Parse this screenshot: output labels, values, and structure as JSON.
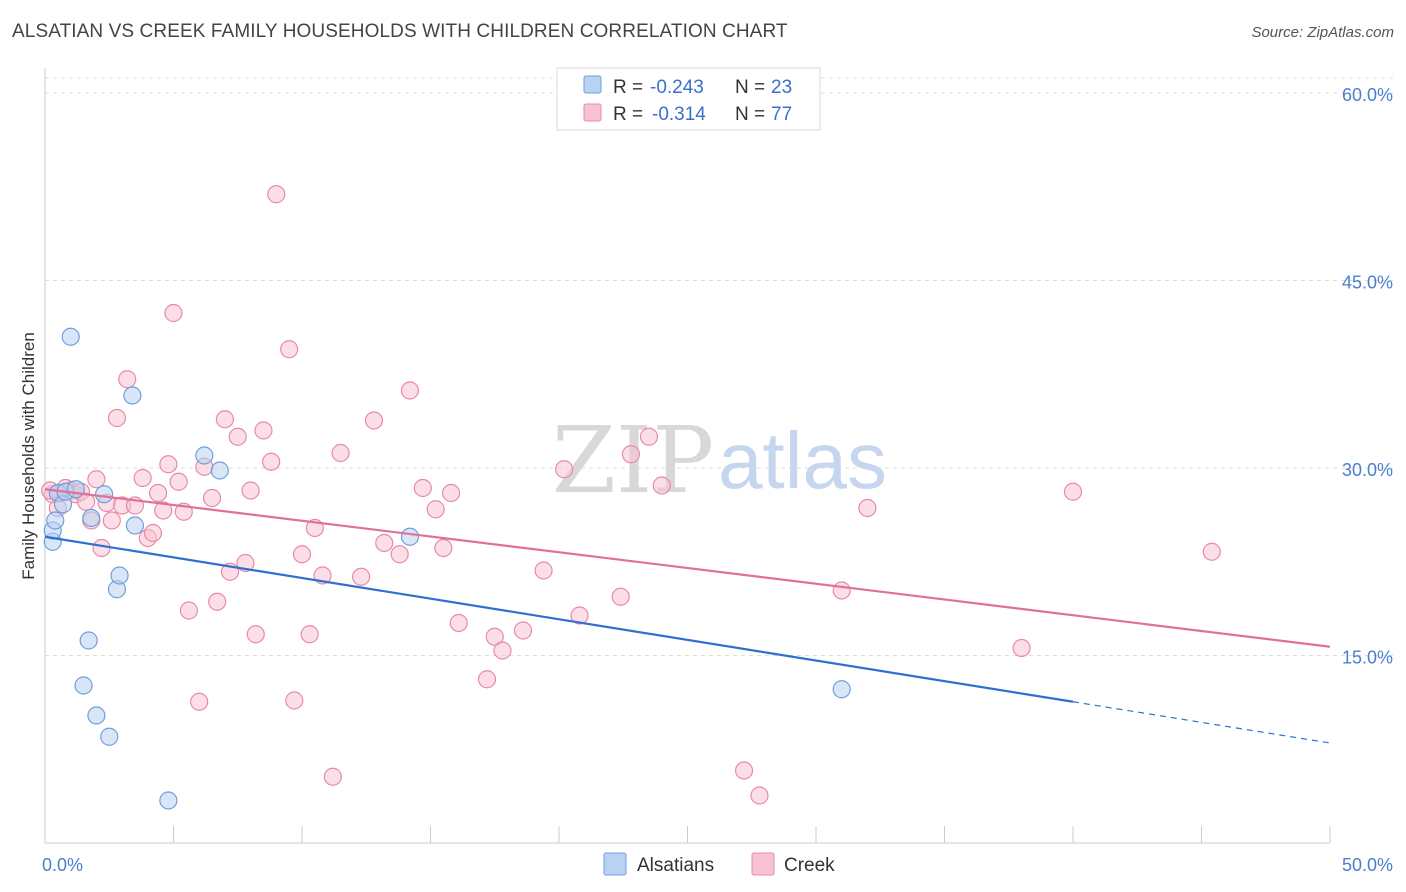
{
  "title": "ALSATIAN VS CREEK FAMILY HOUSEHOLDS WITH CHILDREN CORRELATION CHART",
  "source": "Source: ZipAtlas.com",
  "watermark": {
    "zip": "ZIP",
    "atlas": "atlas"
  },
  "legend_top": [
    {
      "r_label": "R = ",
      "r_value": "-0.243",
      "n_label": "N = ",
      "n_value": "23"
    },
    {
      "r_label": "R = ",
      "r_value": "-0.314",
      "n_label": "N = ",
      "n_value": "77"
    }
  ],
  "legend_bottom": [
    "Alsatians",
    "Creek"
  ],
  "colors": {
    "alsatians_fill": "#b8d2f3",
    "alsatians_stroke": "#6f9fdc",
    "alsatians_line": "#2f6fd0",
    "creek_fill": "#f7c3d2",
    "creek_stroke": "#e88aa6",
    "creek_line": "#e0709a",
    "grid": "#dddddd",
    "tick_text": "#4a7fd0"
  },
  "chart_data": {
    "type": "scatter",
    "title": "ALSATIAN VS CREEK FAMILY HOUSEHOLDS WITH CHILDREN CORRELATION CHART",
    "xlabel": "",
    "ylabel": "Family Households with Children",
    "xlim": [
      0,
      50
    ],
    "ylim": [
      0,
      62
    ],
    "x_tick_labels": [
      "0.0%",
      "50.0%"
    ],
    "y_ticks": [
      15,
      30,
      45,
      60
    ],
    "y_tick_labels": [
      "15.0%",
      "30.0%",
      "45.0%",
      "60.0%"
    ],
    "grid": true,
    "legend_placement": "top-center",
    "series": [
      {
        "name": "Alsatians",
        "R": -0.243,
        "N": 23,
        "trend": {
          "x0": 0,
          "y0": 24.5,
          "x1": 40,
          "y1": 11.3,
          "dashed_to_x": 50,
          "dashed_to_y": 8.0
        },
        "points": [
          [
            0.3,
            24.1
          ],
          [
            0.3,
            25.0
          ],
          [
            0.4,
            25.8
          ],
          [
            0.5,
            28.0
          ],
          [
            0.7,
            27.1
          ],
          [
            0.8,
            28.1
          ],
          [
            1.0,
            40.5
          ],
          [
            1.2,
            28.3
          ],
          [
            1.5,
            12.6
          ],
          [
            1.7,
            16.2
          ],
          [
            1.8,
            26.0
          ],
          [
            2.0,
            10.2
          ],
          [
            2.3,
            27.9
          ],
          [
            2.5,
            8.5
          ],
          [
            2.8,
            20.3
          ],
          [
            2.9,
            21.4
          ],
          [
            3.4,
            35.8
          ],
          [
            3.5,
            25.4
          ],
          [
            4.8,
            3.4
          ],
          [
            6.2,
            31.0
          ],
          [
            6.8,
            29.8
          ],
          [
            14.2,
            24.5
          ],
          [
            31.0,
            12.3
          ]
        ]
      },
      {
        "name": "Creek",
        "R": -0.314,
        "N": 77,
        "trend": {
          "x0": 0,
          "y0": 28.3,
          "x1": 50,
          "y1": 15.7
        },
        "points": [
          [
            0.3,
            27.9
          ],
          [
            0.5,
            26.8
          ],
          [
            0.6,
            28.0
          ],
          [
            0.8,
            28.4
          ],
          [
            1.0,
            28.2
          ],
          [
            1.2,
            27.9
          ],
          [
            1.4,
            28.1
          ],
          [
            1.6,
            27.3
          ],
          [
            1.8,
            25.8
          ],
          [
            2.0,
            29.1
          ],
          [
            2.2,
            23.6
          ],
          [
            2.4,
            27.2
          ],
          [
            2.6,
            25.8
          ],
          [
            2.8,
            34.0
          ],
          [
            3.0,
            27.0
          ],
          [
            3.2,
            37.1
          ],
          [
            3.5,
            27.0
          ],
          [
            3.8,
            29.2
          ],
          [
            4.0,
            24.4
          ],
          [
            4.2,
            24.8
          ],
          [
            4.4,
            28.0
          ],
          [
            4.6,
            26.6
          ],
          [
            4.8,
            30.3
          ],
          [
            5.0,
            42.4
          ],
          [
            5.2,
            28.9
          ],
          [
            5.4,
            26.5
          ],
          [
            5.6,
            18.6
          ],
          [
            6.0,
            11.3
          ],
          [
            6.2,
            30.1
          ],
          [
            6.5,
            27.6
          ],
          [
            6.7,
            19.3
          ],
          [
            7.0,
            33.9
          ],
          [
            7.2,
            21.7
          ],
          [
            7.5,
            32.5
          ],
          [
            7.8,
            22.4
          ],
          [
            8.0,
            28.2
          ],
          [
            8.2,
            16.7
          ],
          [
            8.5,
            33.0
          ],
          [
            8.8,
            30.5
          ],
          [
            9.0,
            51.9
          ],
          [
            9.5,
            39.5
          ],
          [
            9.7,
            11.4
          ],
          [
            10.0,
            23.1
          ],
          [
            10.3,
            16.7
          ],
          [
            10.5,
            25.2
          ],
          [
            10.8,
            21.4
          ],
          [
            11.2,
            5.3
          ],
          [
            11.5,
            31.2
          ],
          [
            12.3,
            21.3
          ],
          [
            12.8,
            33.8
          ],
          [
            13.2,
            24.0
          ],
          [
            13.8,
            23.1
          ],
          [
            14.2,
            36.2
          ],
          [
            14.7,
            28.4
          ],
          [
            15.2,
            26.7
          ],
          [
            15.5,
            23.6
          ],
          [
            15.8,
            28.0
          ],
          [
            16.1,
            17.6
          ],
          [
            17.2,
            13.1
          ],
          [
            17.5,
            16.5
          ],
          [
            17.8,
            15.4
          ],
          [
            18.6,
            17.0
          ],
          [
            19.4,
            21.8
          ],
          [
            20.2,
            29.9
          ],
          [
            20.8,
            18.2
          ],
          [
            22.4,
            19.7
          ],
          [
            22.8,
            31.1
          ],
          [
            23.5,
            32.5
          ],
          [
            24.0,
            28.6
          ],
          [
            27.2,
            5.8
          ],
          [
            27.8,
            3.8
          ],
          [
            31.0,
            20.2
          ],
          [
            32.0,
            26.8
          ],
          [
            38.0,
            15.6
          ],
          [
            40.0,
            28.1
          ],
          [
            45.4,
            23.3
          ],
          [
            0.2,
            28.2
          ]
        ]
      }
    ]
  }
}
